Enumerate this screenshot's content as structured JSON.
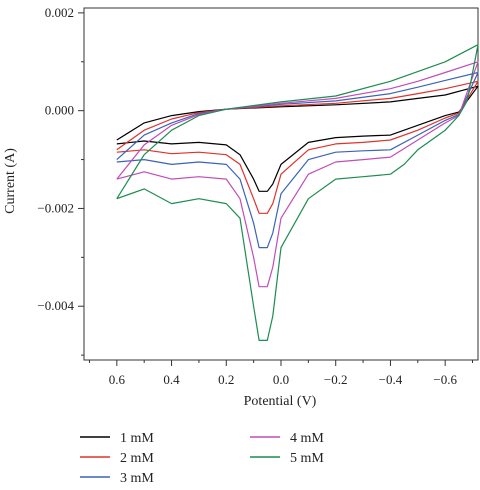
{
  "chart_data": {
    "type": "line",
    "xlabel": "Potential (V)",
    "ylabel": "Current (A)",
    "xlim": [
      0.72,
      -0.72
    ],
    "ylim": [
      -0.0051,
      0.0021
    ],
    "x_ticks": [
      0.6,
      0.4,
      0.2,
      0.0,
      -0.2,
      -0.4,
      -0.6
    ],
    "x_tick_labels": [
      "0.6",
      "0.4",
      "0.2",
      "0.0",
      "−0.2",
      "−0.4",
      "−0.6"
    ],
    "y_ticks": [
      0.002,
      0.0,
      -0.002,
      -0.004
    ],
    "y_tick_labels": [
      "0.002",
      "0.000",
      "−0.002",
      "−0.004"
    ],
    "grid": false,
    "legend_position": "bottom",
    "series": [
      {
        "name": "1 mM",
        "color": "#000000",
        "forward": [
          [
            0.6,
            -0.0006
          ],
          [
            0.5,
            -0.00025
          ],
          [
            0.4,
            -0.0001
          ],
          [
            0.3,
            -2e-05
          ],
          [
            0.2,
            3e-05
          ],
          [
            0.0,
            8e-05
          ],
          [
            -0.2,
            0.00012
          ],
          [
            -0.4,
            0.00018
          ],
          [
            -0.5,
            0.00025
          ],
          [
            -0.6,
            0.00032
          ],
          [
            -0.72,
            0.0005
          ]
        ],
        "reverse": [
          [
            -0.72,
            0.0003
          ],
          [
            -0.65,
            -3e-05
          ],
          [
            -0.6,
            -0.0001
          ],
          [
            -0.5,
            -0.0003
          ],
          [
            -0.4,
            -0.0005
          ],
          [
            -0.3,
            -0.00052
          ],
          [
            -0.2,
            -0.00055
          ],
          [
            -0.1,
            -0.00065
          ],
          [
            0.0,
            -0.0011
          ],
          [
            0.03,
            -0.0015
          ],
          [
            0.05,
            -0.00165
          ],
          [
            0.08,
            -0.00165
          ],
          [
            0.1,
            -0.0014
          ],
          [
            0.15,
            -0.0009
          ],
          [
            0.2,
            -0.0007
          ],
          [
            0.3,
            -0.00065
          ],
          [
            0.4,
            -0.00068
          ],
          [
            0.5,
            -0.00062
          ],
          [
            0.6,
            -0.00068
          ]
        ]
      },
      {
        "name": "2 mM",
        "color": "#e0322b",
        "forward": [
          [
            0.6,
            -0.0008
          ],
          [
            0.5,
            -0.0004
          ],
          [
            0.4,
            -0.00017
          ],
          [
            0.3,
            -4e-05
          ],
          [
            0.2,
            3e-05
          ],
          [
            0.0,
            0.0001
          ],
          [
            -0.2,
            0.00015
          ],
          [
            -0.4,
            0.00025
          ],
          [
            -0.5,
            0.00035
          ],
          [
            -0.6,
            0.00045
          ],
          [
            -0.72,
            0.0006
          ]
        ],
        "reverse": [
          [
            -0.72,
            0.00028
          ],
          [
            -0.65,
            -5e-05
          ],
          [
            -0.6,
            -0.00015
          ],
          [
            -0.5,
            -0.0004
          ],
          [
            -0.4,
            -0.0006
          ],
          [
            -0.3,
            -0.00065
          ],
          [
            -0.2,
            -0.00068
          ],
          [
            -0.1,
            -0.0008
          ],
          [
            0.0,
            -0.0013
          ],
          [
            0.03,
            -0.0019
          ],
          [
            0.05,
            -0.0021
          ],
          [
            0.08,
            -0.0021
          ],
          [
            0.1,
            -0.0018
          ],
          [
            0.15,
            -0.0011
          ],
          [
            0.2,
            -0.0009
          ],
          [
            0.3,
            -0.00085
          ],
          [
            0.4,
            -0.00088
          ],
          [
            0.5,
            -0.0008
          ],
          [
            0.6,
            -0.00085
          ]
        ]
      },
      {
        "name": "3 mM",
        "color": "#3b63b8",
        "forward": [
          [
            0.6,
            -0.001
          ],
          [
            0.5,
            -0.0005
          ],
          [
            0.4,
            -0.00025
          ],
          [
            0.3,
            -6e-05
          ],
          [
            0.2,
            3e-05
          ],
          [
            0.0,
            0.00013
          ],
          [
            -0.2,
            0.0002
          ],
          [
            -0.4,
            0.00035
          ],
          [
            -0.5,
            0.00048
          ],
          [
            -0.6,
            0.00062
          ],
          [
            -0.72,
            0.00078
          ]
        ],
        "reverse": [
          [
            -0.72,
            0.00025
          ],
          [
            -0.65,
            -8e-05
          ],
          [
            -0.6,
            -0.0002
          ],
          [
            -0.5,
            -0.0005
          ],
          [
            -0.4,
            -0.0008
          ],
          [
            -0.3,
            -0.00082
          ],
          [
            -0.2,
            -0.00085
          ],
          [
            -0.1,
            -0.001
          ],
          [
            0.0,
            -0.0017
          ],
          [
            0.03,
            -0.0025
          ],
          [
            0.05,
            -0.0028
          ],
          [
            0.08,
            -0.0028
          ],
          [
            0.1,
            -0.0023
          ],
          [
            0.15,
            -0.0014
          ],
          [
            0.2,
            -0.0011
          ],
          [
            0.3,
            -0.00105
          ],
          [
            0.4,
            -0.0011
          ],
          [
            0.5,
            -0.001
          ],
          [
            0.6,
            -0.00105
          ]
        ]
      },
      {
        "name": "4 mM",
        "color": "#c04db8",
        "forward": [
          [
            0.6,
            -0.0014
          ],
          [
            0.5,
            -0.0007
          ],
          [
            0.4,
            -0.0003
          ],
          [
            0.3,
            -8e-05
          ],
          [
            0.2,
            3e-05
          ],
          [
            0.0,
            0.00015
          ],
          [
            -0.2,
            0.00025
          ],
          [
            -0.4,
            0.00045
          ],
          [
            -0.5,
            0.0006
          ],
          [
            -0.6,
            0.00078
          ],
          [
            -0.72,
            0.001
          ]
        ],
        "reverse": [
          [
            -0.72,
            0.00022
          ],
          [
            -0.65,
            -0.0001
          ],
          [
            -0.6,
            -0.00025
          ],
          [
            -0.5,
            -0.0006
          ],
          [
            -0.4,
            -0.00095
          ],
          [
            -0.3,
            -0.001
          ],
          [
            -0.2,
            -0.00105
          ],
          [
            -0.1,
            -0.0013
          ],
          [
            0.0,
            -0.0022
          ],
          [
            0.03,
            -0.0032
          ],
          [
            0.05,
            -0.0036
          ],
          [
            0.08,
            -0.0036
          ],
          [
            0.1,
            -0.003
          ],
          [
            0.15,
            -0.0018
          ],
          [
            0.2,
            -0.0014
          ],
          [
            0.3,
            -0.00135
          ],
          [
            0.4,
            -0.0014
          ],
          [
            0.5,
            -0.00125
          ],
          [
            0.6,
            -0.0014
          ]
        ]
      },
      {
        "name": "5 mM",
        "color": "#1e8c50",
        "forward": [
          [
            0.6,
            -0.0018
          ],
          [
            0.5,
            -0.0009
          ],
          [
            0.4,
            -0.0004
          ],
          [
            0.3,
            -0.0001
          ],
          [
            0.2,
            3e-05
          ],
          [
            0.0,
            0.00018
          ],
          [
            -0.2,
            0.0003
          ],
          [
            -0.4,
            0.0006
          ],
          [
            -0.5,
            0.0008
          ],
          [
            -0.6,
            0.001
          ],
          [
            -0.72,
            0.00135
          ]
        ],
        "reverse": [
          [
            -0.72,
            0.0007
          ],
          [
            -0.68,
            0.0002
          ],
          [
            -0.65,
            -0.0001
          ],
          [
            -0.6,
            -0.0004
          ],
          [
            -0.5,
            -0.0008
          ],
          [
            -0.45,
            -0.0011
          ],
          [
            -0.4,
            -0.0013
          ],
          [
            -0.3,
            -0.00135
          ],
          [
            -0.2,
            -0.0014
          ],
          [
            -0.1,
            -0.0018
          ],
          [
            0.0,
            -0.0028
          ],
          [
            0.03,
            -0.0042
          ],
          [
            0.05,
            -0.0047
          ],
          [
            0.08,
            -0.0047
          ],
          [
            0.1,
            -0.004
          ],
          [
            0.15,
            -0.0022
          ],
          [
            0.2,
            -0.0019
          ],
          [
            0.3,
            -0.0018
          ],
          [
            0.4,
            -0.0019
          ],
          [
            0.5,
            -0.0016
          ],
          [
            0.6,
            -0.0018
          ]
        ]
      }
    ]
  }
}
